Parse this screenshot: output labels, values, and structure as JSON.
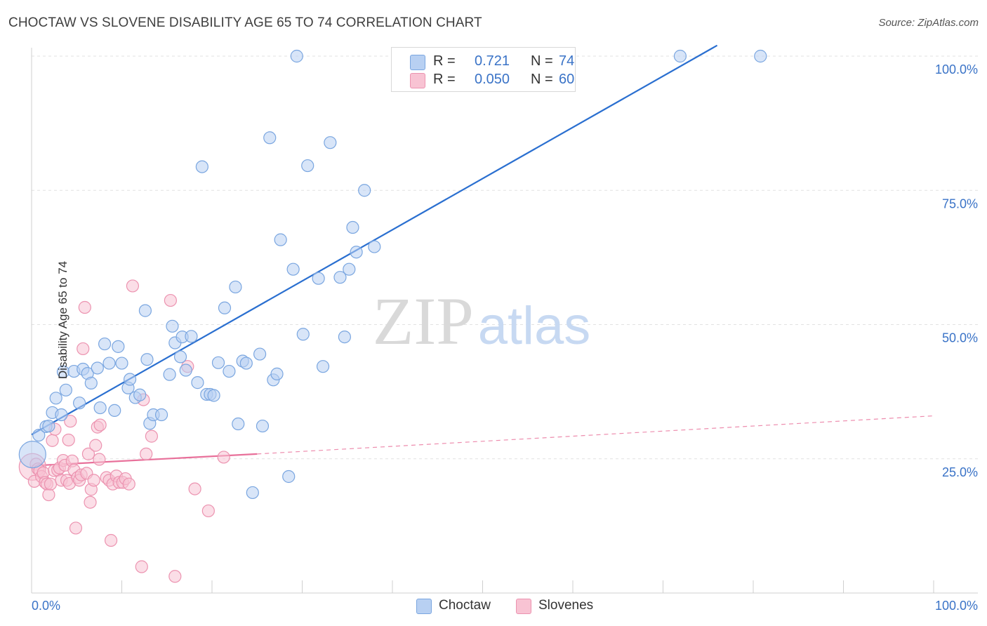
{
  "header": {
    "title": "CHOCTAW VS SLOVENE DISABILITY AGE 65 TO 74 CORRELATION CHART",
    "source": "Source: ZipAtlas.com"
  },
  "legend": {
    "rows": [
      {
        "r_label": "R =",
        "r_value": "0.721",
        "n_label": "N =",
        "n_value": "74"
      },
      {
        "r_label": "R =",
        "r_value": "0.050",
        "n_label": "N =",
        "n_value": "60"
      }
    ],
    "bottom": [
      "Choctaw",
      "Slovenes"
    ]
  },
  "watermark": {
    "part1": "ZIP",
    "part2": "atlas"
  },
  "chart_data": {
    "type": "scatter",
    "title": "CHOCTAW VS SLOVENE DISABILITY AGE 65 TO 74 CORRELATION CHART",
    "xlabel": "",
    "ylabel": "Disability Age 65 to 74",
    "xlim": [
      0,
      100
    ],
    "ylim": [
      0,
      100
    ],
    "x_tick_labels": [
      "0.0%",
      "100.0%"
    ],
    "y_tick_labels": [
      "25.0%",
      "50.0%",
      "75.0%",
      "100.0%"
    ],
    "y_ticks": [
      25,
      50,
      75,
      100
    ],
    "grid": "horizontal dashed",
    "legend_position": "top-center",
    "colors": {
      "choctaw_fill": "#b8d0f2",
      "choctaw_stroke": "#7aa6e0",
      "choctaw_line": "#2a6fd0",
      "slovene_fill": "#f8c3d3",
      "slovene_stroke": "#ec93b0",
      "slovene_line": "#e8709a",
      "tick_label": "#3a73c7",
      "grid": "#e2e2e2"
    },
    "series": [
      {
        "name": "Choctaw",
        "R": 0.721,
        "N": 74,
        "trend": {
          "x0": 0,
          "y0": 29.5,
          "x1": 76,
          "y1": 102,
          "dashed_to": null
        },
        "points": [
          [
            0.1,
            25.8,
            "big"
          ],
          [
            0.8,
            29.4
          ],
          [
            1.6,
            31.0
          ],
          [
            1.9,
            31.1
          ],
          [
            2.3,
            33.6
          ],
          [
            2.7,
            36.3
          ],
          [
            3.3,
            33.2
          ],
          [
            3.5,
            41.2
          ],
          [
            3.8,
            37.8
          ],
          [
            4.7,
            41.3
          ],
          [
            5.3,
            35.4
          ],
          [
            5.7,
            41.7
          ],
          [
            6.2,
            40.9
          ],
          [
            6.6,
            39.1
          ],
          [
            7.3,
            41.9
          ],
          [
            7.6,
            34.5
          ],
          [
            8.1,
            46.4
          ],
          [
            8.6,
            42.8
          ],
          [
            9.2,
            34.0
          ],
          [
            9.6,
            45.9
          ],
          [
            10.0,
            42.8
          ],
          [
            10.7,
            38.2
          ],
          [
            10.9,
            39.8
          ],
          [
            11.5,
            36.4
          ],
          [
            12.0,
            36.9
          ],
          [
            12.6,
            52.6
          ],
          [
            12.8,
            43.5
          ],
          [
            13.1,
            31.6
          ],
          [
            13.5,
            33.2
          ],
          [
            14.4,
            33.2
          ],
          [
            15.3,
            40.7
          ],
          [
            15.6,
            49.7
          ],
          [
            15.9,
            46.6
          ],
          [
            16.5,
            44.0
          ],
          [
            16.7,
            47.7
          ],
          [
            17.1,
            41.5
          ],
          [
            17.7,
            47.8
          ],
          [
            18.4,
            39.2
          ],
          [
            18.9,
            79.4
          ],
          [
            19.4,
            37.0
          ],
          [
            19.8,
            37.0
          ],
          [
            20.2,
            36.8
          ],
          [
            20.7,
            42.9
          ],
          [
            21.4,
            53.1
          ],
          [
            21.9,
            41.3
          ],
          [
            22.6,
            57.0
          ],
          [
            22.9,
            31.5
          ],
          [
            23.4,
            43.2
          ],
          [
            23.8,
            42.8
          ],
          [
            24.5,
            18.7
          ],
          [
            25.3,
            44.5
          ],
          [
            25.6,
            31.1
          ],
          [
            26.4,
            84.8
          ],
          [
            26.8,
            39.7
          ],
          [
            27.2,
            40.8
          ],
          [
            27.6,
            65.8
          ],
          [
            28.5,
            21.7
          ],
          [
            29.0,
            60.3
          ],
          [
            29.4,
            100.0
          ],
          [
            30.1,
            48.2
          ],
          [
            30.6,
            79.6
          ],
          [
            31.8,
            58.6
          ],
          [
            32.3,
            42.2
          ],
          [
            33.1,
            83.9
          ],
          [
            34.2,
            58.8
          ],
          [
            34.7,
            47.7
          ],
          [
            35.2,
            60.3
          ],
          [
            35.6,
            68.1
          ],
          [
            36.0,
            63.5
          ],
          [
            36.9,
            75.0
          ],
          [
            38.0,
            64.5
          ],
          [
            43.9,
            100.0
          ],
          [
            71.9,
            100.0
          ],
          [
            80.8,
            100.0
          ]
        ]
      },
      {
        "name": "Slovenes",
        "R": 0.05,
        "N": 60,
        "trend": {
          "x0": 0,
          "y0": 23.7,
          "x1": 25,
          "y1": 25.9,
          "dashed_to": [
            100,
            33.0
          ]
        },
        "points": [
          [
            0.1,
            23.5,
            "big"
          ],
          [
            0.3,
            20.8
          ],
          [
            0.5,
            24.0
          ],
          [
            0.7,
            23.1
          ],
          [
            0.9,
            22.8
          ],
          [
            1.1,
            21.7
          ],
          [
            1.3,
            22.4
          ],
          [
            1.5,
            20.6
          ],
          [
            1.7,
            20.3
          ],
          [
            1.9,
            18.3
          ],
          [
            2.1,
            20.3
          ],
          [
            2.3,
            28.4
          ],
          [
            2.5,
            22.8
          ],
          [
            2.6,
            30.5
          ],
          [
            2.9,
            22.9
          ],
          [
            3.1,
            23.3
          ],
          [
            3.3,
            21.0
          ],
          [
            3.5,
            24.7
          ],
          [
            3.7,
            23.8
          ],
          [
            3.9,
            21.0
          ],
          [
            4.1,
            28.5
          ],
          [
            4.2,
            20.4
          ],
          [
            4.3,
            32.0
          ],
          [
            4.5,
            24.6
          ],
          [
            4.7,
            22.9
          ],
          [
            4.9,
            12.1
          ],
          [
            5.1,
            21.5
          ],
          [
            5.3,
            21.0
          ],
          [
            5.5,
            22.0
          ],
          [
            5.7,
            45.5
          ],
          [
            5.9,
            53.2
          ],
          [
            6.1,
            22.3
          ],
          [
            6.3,
            25.9
          ],
          [
            6.5,
            16.9
          ],
          [
            6.6,
            19.3
          ],
          [
            6.9,
            21.0
          ],
          [
            7.1,
            27.5
          ],
          [
            7.3,
            30.9
          ],
          [
            7.5,
            24.9
          ],
          [
            7.6,
            31.3
          ],
          [
            8.3,
            21.5
          ],
          [
            8.6,
            21.0
          ],
          [
            8.8,
            9.8
          ],
          [
            9.0,
            20.3
          ],
          [
            9.4,
            21.8
          ],
          [
            9.7,
            20.6
          ],
          [
            10.1,
            20.6
          ],
          [
            10.4,
            21.3
          ],
          [
            10.8,
            20.3
          ],
          [
            11.2,
            57.2
          ],
          [
            12.2,
            4.9
          ],
          [
            12.4,
            36.0
          ],
          [
            12.7,
            25.9
          ],
          [
            13.3,
            29.2
          ],
          [
            15.4,
            54.5
          ],
          [
            15.9,
            3.1
          ],
          [
            17.3,
            42.2
          ],
          [
            19.6,
            15.3
          ],
          [
            21.3,
            25.3
          ],
          [
            18.1,
            19.4
          ]
        ]
      }
    ]
  }
}
